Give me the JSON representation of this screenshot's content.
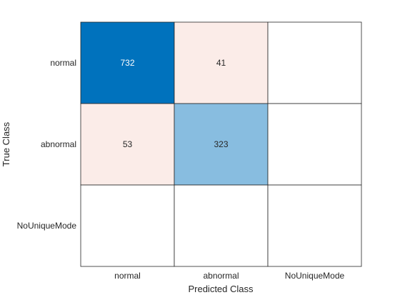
{
  "chart_data": {
    "type": "heatmap",
    "title": "",
    "xlabel": "Predicted Class",
    "ylabel": "True Class",
    "x_categories": [
      "normal",
      "abnormal",
      "NoUniqueMode"
    ],
    "y_categories": [
      "normal",
      "abnormal",
      "NoUniqueMode"
    ],
    "values": [
      [
        732,
        41,
        null
      ],
      [
        53,
        323,
        null
      ],
      [
        null,
        null,
        null
      ]
    ],
    "cell_colors": [
      [
        "#0072BD",
        "#FBECE8",
        "#FFFFFF"
      ],
      [
        "#FBECE8",
        "#88BDE0",
        "#FFFFFF"
      ],
      [
        "#FFFFFF",
        "#FFFFFF",
        "#FFFFFF"
      ]
    ],
    "text_colors": [
      [
        "#FFFFFF",
        "#262626",
        "#262626"
      ],
      [
        "#262626",
        "#262626",
        "#262626"
      ],
      [
        "#262626",
        "#262626",
        "#262626"
      ]
    ],
    "grid": true,
    "legend": "none"
  }
}
